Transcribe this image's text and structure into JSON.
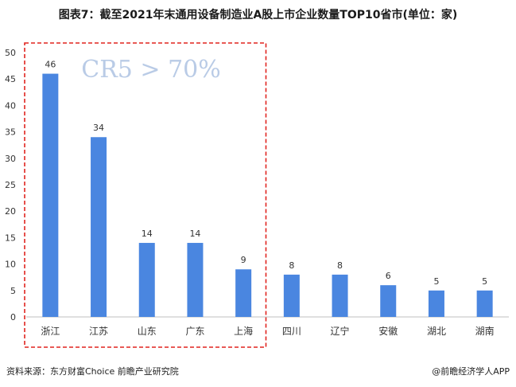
{
  "title": "图表7：截至2021年末通用设备制造业A股上市企业数量TOP10省市(单位：家)",
  "footer": {
    "source": "资料来源：东方财富Choice 前瞻产业研究院",
    "brand": "@前瞻经济学人APP"
  },
  "colors": {
    "bar": "#4a86e0",
    "highlight_box": "#e0241f",
    "axis": "#bfbfbf"
  },
  "chart_data": {
    "type": "bar",
    "categories": [
      "浙江",
      "江苏",
      "山东",
      "广东",
      "上海",
      "四川",
      "辽宁",
      "安徽",
      "湖北",
      "湖南"
    ],
    "values": [
      46,
      34,
      14,
      14,
      9,
      8,
      8,
      6,
      5,
      5
    ],
    "ylim": [
      0,
      50
    ],
    "yticks": [
      0,
      5,
      10,
      15,
      20,
      25,
      30,
      35,
      40,
      45,
      50
    ],
    "grid": false,
    "legend": "none",
    "annotation": "CR5 > 70%",
    "highlight_categories": [
      "浙江",
      "江苏",
      "山东",
      "广东",
      "上海"
    ]
  }
}
